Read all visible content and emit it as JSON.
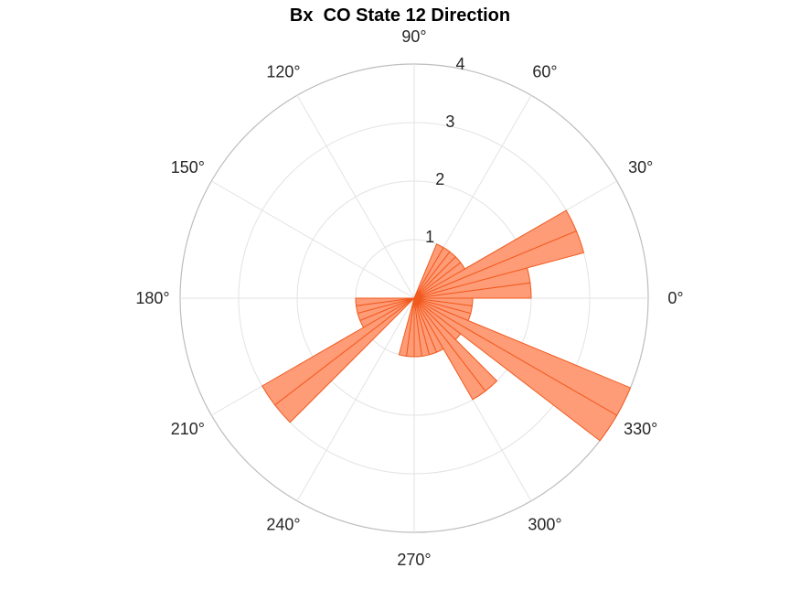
{
  "chart_data": {
    "type": "polar-histogram",
    "title": "Bx  CO State 12 Direction",
    "angle_unit": "°",
    "angle_ticks": [
      0,
      30,
      60,
      90,
      120,
      150,
      180,
      210,
      240,
      270,
      300,
      330
    ],
    "radial_ticks": [
      1,
      2,
      3,
      4
    ],
    "rlim": [
      0,
      4
    ],
    "bin_width_deg": 7.5,
    "bins": [
      {
        "start": 0,
        "end": 7.5,
        "value": 2
      },
      {
        "start": 7.5,
        "end": 15,
        "value": 2
      },
      {
        "start": 15,
        "end": 22.5,
        "value": 3
      },
      {
        "start": 22.5,
        "end": 30,
        "value": 3
      },
      {
        "start": 30,
        "end": 37.5,
        "value": 1
      },
      {
        "start": 37.5,
        "end": 45,
        "value": 1
      },
      {
        "start": 45,
        "end": 52.5,
        "value": 1
      },
      {
        "start": 52.5,
        "end": 60,
        "value": 1
      },
      {
        "start": 60,
        "end": 67.5,
        "value": 1
      },
      {
        "start": 180,
        "end": 187.5,
        "value": 1
      },
      {
        "start": 187.5,
        "end": 195,
        "value": 1
      },
      {
        "start": 195,
        "end": 202.5,
        "value": 1
      },
      {
        "start": 202.5,
        "end": 210,
        "value": 1
      },
      {
        "start": 210,
        "end": 217.5,
        "value": 3
      },
      {
        "start": 217.5,
        "end": 225,
        "value": 3
      },
      {
        "start": 255,
        "end": 262.5,
        "value": 1
      },
      {
        "start": 262.5,
        "end": 270,
        "value": 1
      },
      {
        "start": 270,
        "end": 277.5,
        "value": 1
      },
      {
        "start": 277.5,
        "end": 285,
        "value": 1
      },
      {
        "start": 285,
        "end": 292.5,
        "value": 1
      },
      {
        "start": 292.5,
        "end": 300,
        "value": 1
      },
      {
        "start": 300,
        "end": 307.5,
        "value": 2
      },
      {
        "start": 307.5,
        "end": 315,
        "value": 2
      },
      {
        "start": 315,
        "end": 322.5,
        "value": 1
      },
      {
        "start": 322.5,
        "end": 330,
        "value": 4
      },
      {
        "start": 330,
        "end": 337.5,
        "value": 4
      },
      {
        "start": 337.5,
        "end": 345,
        "value": 1
      },
      {
        "start": 345,
        "end": 352.5,
        "value": 1
      },
      {
        "start": 352.5,
        "end": 360,
        "value": 1
      }
    ],
    "colors": {
      "bar_fill": "#ff9c78",
      "bar_edge": "#f15a1e",
      "grid": "#e3e3e3",
      "outer_ring": "#bdbdbd",
      "text": "#262626"
    }
  }
}
